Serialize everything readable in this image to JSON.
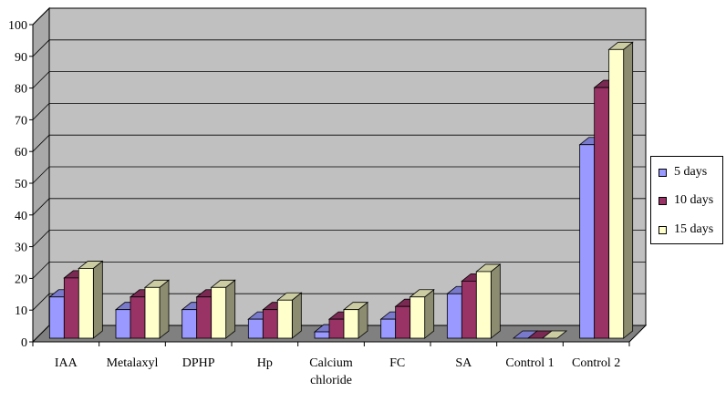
{
  "chart_data": {
    "type": "bar",
    "title": "",
    "xlabel": "",
    "ylabel": "",
    "ylim": [
      0,
      100
    ],
    "yticks": [
      "0",
      "10",
      "20",
      "30",
      "40",
      "50",
      "60",
      "70",
      "80",
      "90",
      "100"
    ],
    "grid": true,
    "legend_position": "right",
    "categories": [
      "IAA",
      "Metalaxyl",
      "DPHP",
      "Hp",
      "Calcium chloride",
      "FC",
      "SA",
      "Control 1",
      "Control 2"
    ],
    "series": [
      {
        "name": "5 days",
        "color": "#9999ff",
        "values": [
          13,
          9,
          9,
          6,
          2,
          6,
          14,
          0,
          61
        ]
      },
      {
        "name": "10 days",
        "color": "#993366",
        "values": [
          19,
          13,
          13,
          9,
          6,
          10,
          18,
          0,
          79
        ]
      },
      {
        "name": "15 days",
        "color": "#ffffcc",
        "values": [
          22,
          16,
          16,
          12,
          9,
          13,
          21,
          0,
          91
        ]
      }
    ],
    "colors": {
      "plot_back": "#c0c0c0",
      "plot_side": "#a9a9a9",
      "floor": "#808080",
      "grid": "#000000"
    }
  }
}
